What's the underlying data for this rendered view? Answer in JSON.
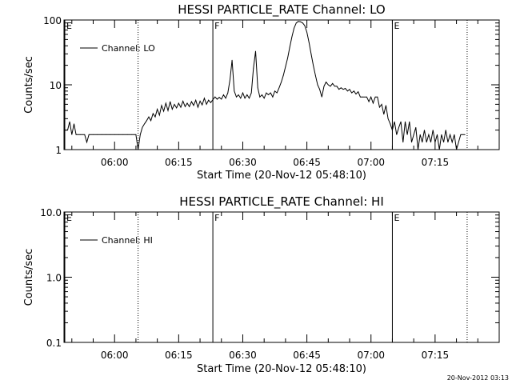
{
  "footer": {
    "timestamp": "20-Nov-2012 03:13"
  },
  "chart_data": [
    {
      "type": "line",
      "title": "HESSI PARTICLE_RATE Channel: LO",
      "xlabel": "Start Time (20-Nov-12 05:48:10)",
      "ylabel": "Counts/sec",
      "yscale": "log",
      "ylim": [
        1,
        100
      ],
      "y_ticks": [
        "1",
        "10",
        "100"
      ],
      "xlim": [
        "05:48:10",
        "07:30:00"
      ],
      "x_ticks": [
        "06:00",
        "06:15",
        "06:30",
        "06:45",
        "07:00",
        "07:15"
      ],
      "legend": {
        "entries": [
          "Channel: LO"
        ],
        "position": "upper-left"
      },
      "markers": [
        {
          "time": "05:48:10",
          "label": "E",
          "style": "solid"
        },
        {
          "time": "06:05:30",
          "label": "",
          "style": "dotted"
        },
        {
          "time": "06:23:00",
          "label": "F",
          "style": "solid"
        },
        {
          "time": "07:05:00",
          "label": "E",
          "style": "solid"
        },
        {
          "time": "07:22:30",
          "label": "",
          "style": "dotted"
        }
      ],
      "series": [
        {
          "name": "Channel: LO",
          "points": [
            [
              "05:48:10",
              2
            ],
            [
              "05:49:00",
              2
            ],
            [
              "05:49:30",
              2.7
            ],
            [
              "05:50:00",
              1.7
            ],
            [
              "05:50:30",
              2.5
            ],
            [
              "05:51:00",
              1.7
            ],
            [
              "05:52:00",
              1.7
            ],
            [
              "05:53:00",
              1.7
            ],
            [
              "05:53:30",
              1.3
            ],
            [
              "05:54:00",
              1.7
            ],
            [
              "05:55:00",
              1.7
            ],
            [
              "05:56:00",
              1.7
            ],
            [
              "05:57:00",
              1.7
            ],
            [
              "05:58:00",
              1.7
            ],
            [
              "05:59:00",
              1.7
            ],
            [
              "06:00:00",
              1.7
            ],
            [
              "06:01:00",
              1.7
            ],
            [
              "06:02:00",
              1.7
            ],
            [
              "06:03:00",
              1.7
            ],
            [
              "06:04:00",
              1.7
            ],
            [
              "06:05:00",
              1.7
            ],
            [
              "06:05:30",
              1
            ],
            [
              "06:06:00",
              1.7
            ],
            [
              "06:06:30",
              2.2
            ],
            [
              "06:07:00",
              2.5
            ],
            [
              "06:07:30",
              2.8
            ],
            [
              "06:08:00",
              3.2
            ],
            [
              "06:08:30",
              2.8
            ],
            [
              "06:09:00",
              3.6
            ],
            [
              "06:09:30",
              3.2
            ],
            [
              "06:10:00",
              4.2
            ],
            [
              "06:10:30",
              3.4
            ],
            [
              "06:11:00",
              4.8
            ],
            [
              "06:11:30",
              3.9
            ],
            [
              "06:12:00",
              5.2
            ],
            [
              "06:12:30",
              4.0
            ],
            [
              "06:13:00",
              5.5
            ],
            [
              "06:13:30",
              4.2
            ],
            [
              "06:14:00",
              5.0
            ],
            [
              "06:14:30",
              4.4
            ],
            [
              "06:15:00",
              5.2
            ],
            [
              "06:15:30",
              4.5
            ],
            [
              "06:16:00",
              5.6
            ],
            [
              "06:16:30",
              4.6
            ],
            [
              "06:17:00",
              5.2
            ],
            [
              "06:17:30",
              4.6
            ],
            [
              "06:18:00",
              5.5
            ],
            [
              "06:18:30",
              4.8
            ],
            [
              "06:19:00",
              5.8
            ],
            [
              "06:19:30",
              4.5
            ],
            [
              "06:20:00",
              5.6
            ],
            [
              "06:20:30",
              4.9
            ],
            [
              "06:21:00",
              6.2
            ],
            [
              "06:21:30",
              5.0
            ],
            [
              "06:22:00",
              5.8
            ],
            [
              "06:22:30",
              5.3
            ],
            [
              "06:23:00",
              5.9
            ],
            [
              "06:23:30",
              6.5
            ],
            [
              "06:24:00",
              6.0
            ],
            [
              "06:24:30",
              6.4
            ],
            [
              "06:25:00",
              6.0
            ],
            [
              "06:25:30",
              7.0
            ],
            [
              "06:26:00",
              6.2
            ],
            [
              "06:26:30",
              7.5
            ],
            [
              "06:27:00",
              12
            ],
            [
              "06:27:30",
              24
            ],
            [
              "06:28:00",
              8
            ],
            [
              "06:28:30",
              6.5
            ],
            [
              "06:29:00",
              7.0
            ],
            [
              "06:29:30",
              6.2
            ],
            [
              "06:30:00",
              7.5
            ],
            [
              "06:30:30",
              6.2
            ],
            [
              "06:31:00",
              7.0
            ],
            [
              "06:31:30",
              6.2
            ],
            [
              "06:32:00",
              7.5
            ],
            [
              "06:32:30",
              18
            ],
            [
              "06:33:00",
              33
            ],
            [
              "06:33:30",
              9
            ],
            [
              "06:34:00",
              6.5
            ],
            [
              "06:34:30",
              7.0
            ],
            [
              "06:35:00",
              6.2
            ],
            [
              "06:35:30",
              7.5
            ],
            [
              "06:36:00",
              7.0
            ],
            [
              "06:36:30",
              7.5
            ],
            [
              "06:37:00",
              6.5
            ],
            [
              "06:37:30",
              8
            ],
            [
              "06:38:00",
              7.5
            ],
            [
              "06:38:30",
              9
            ],
            [
              "06:39:00",
              11
            ],
            [
              "06:39:30",
              14
            ],
            [
              "06:40:00",
              19
            ],
            [
              "06:40:30",
              26
            ],
            [
              "06:41:00",
              38
            ],
            [
              "06:41:30",
              55
            ],
            [
              "06:42:00",
              75
            ],
            [
              "06:42:30",
              90
            ],
            [
              "06:43:00",
              95
            ],
            [
              "06:43:30",
              94
            ],
            [
              "06:44:00",
              90
            ],
            [
              "06:44:30",
              82
            ],
            [
              "06:45:00",
              65
            ],
            [
              "06:45:30",
              45
            ],
            [
              "06:46:00",
              30
            ],
            [
              "06:46:30",
              20
            ],
            [
              "06:47:00",
              14
            ],
            [
              "06:47:30",
              10
            ],
            [
              "06:48:00",
              8.5
            ],
            [
              "06:48:30",
              6.5
            ],
            [
              "06:49:00",
              9.5
            ],
            [
              "06:49:30",
              11
            ],
            [
              "06:50:00",
              10
            ],
            [
              "06:50:30",
              9.5
            ],
            [
              "06:51:00",
              10.5
            ],
            [
              "06:51:30",
              9.5
            ],
            [
              "06:52:00",
              9.5
            ],
            [
              "06:52:30",
              8.5
            ],
            [
              "06:53:00",
              9
            ],
            [
              "06:53:30",
              8.5
            ],
            [
              "06:54:00",
              8.8
            ],
            [
              "06:54:30",
              8
            ],
            [
              "06:55:00",
              8.5
            ],
            [
              "06:55:30",
              7.5
            ],
            [
              "06:56:00",
              8
            ],
            [
              "06:56:30",
              7.2
            ],
            [
              "06:57:00",
              7.8
            ],
            [
              "06:57:30",
              6.5
            ],
            [
              "06:58:00",
              6.5
            ],
            [
              "06:59:00",
              6.5
            ],
            [
              "06:59:30",
              5.5
            ],
            [
              "07:00:00",
              6.5
            ],
            [
              "07:00:30",
              5.2
            ],
            [
              "07:01:00",
              6.5
            ],
            [
              "07:01:30",
              6.5
            ],
            [
              "07:02:00",
              4.5
            ],
            [
              "07:02:30",
              5.0
            ],
            [
              "07:03:00",
              3.5
            ],
            [
              "07:03:30",
              4.8
            ],
            [
              "07:04:00",
              3.0
            ],
            [
              "07:04:30",
              2.5
            ],
            [
              "07:05:00",
              2.0
            ],
            [
              "07:05:30",
              2.7
            ],
            [
              "07:06:00",
              1.7
            ],
            [
              "07:06:30",
              2.2
            ],
            [
              "07:07:00",
              2.7
            ],
            [
              "07:07:30",
              1.3
            ],
            [
              "07:08:00",
              2.7
            ],
            [
              "07:08:30",
              1.7
            ],
            [
              "07:09:00",
              2.7
            ],
            [
              "07:09:30",
              1.3
            ],
            [
              "07:10:00",
              1.7
            ],
            [
              "07:10:30",
              2.2
            ],
            [
              "07:11:00",
              1.0
            ],
            [
              "07:11:30",
              1.7
            ],
            [
              "07:12:00",
              1.3
            ],
            [
              "07:12:30",
              2.0
            ],
            [
              "07:13:00",
              1.3
            ],
            [
              "07:13:30",
              1.7
            ],
            [
              "07:14:00",
              1.3
            ],
            [
              "07:14:30",
              2.0
            ],
            [
              "07:15:00",
              1.3
            ],
            [
              "07:15:30",
              1.7
            ],
            [
              "07:16:00",
              1.0
            ],
            [
              "07:16:30",
              1.7
            ],
            [
              "07:17:00",
              1.3
            ],
            [
              "07:17:30",
              2.0
            ],
            [
              "07:18:00",
              1.3
            ],
            [
              "07:18:30",
              1.7
            ],
            [
              "07:19:00",
              1.3
            ],
            [
              "07:19:30",
              1.7
            ],
            [
              "07:20:00",
              1.0
            ],
            [
              "07:21:00",
              1.7
            ],
            [
              "07:22:00",
              1.7
            ]
          ]
        }
      ]
    },
    {
      "type": "line",
      "title": "HESSI PARTICLE_RATE Channel: HI",
      "xlabel": "Start Time (20-Nov-12 05:48:10)",
      "ylabel": "Counts/sec",
      "yscale": "log",
      "ylim": [
        0.1,
        10
      ],
      "y_ticks": [
        "0.1",
        "1.0",
        "10.0"
      ],
      "xlim": [
        "05:48:10",
        "07:30:00"
      ],
      "x_ticks": [
        "06:00",
        "06:15",
        "06:30",
        "06:45",
        "07:00",
        "07:15"
      ],
      "legend": {
        "entries": [
          "Channel: HI"
        ],
        "position": "upper-left"
      },
      "markers": [
        {
          "time": "05:48:10",
          "label": "E",
          "style": "solid"
        },
        {
          "time": "06:05:30",
          "label": "",
          "style": "dotted"
        },
        {
          "time": "06:23:00",
          "label": "F",
          "style": "solid"
        },
        {
          "time": "07:05:00",
          "label": "E",
          "style": "solid"
        },
        {
          "time": "07:22:30",
          "label": "",
          "style": "dotted"
        }
      ],
      "series": [
        {
          "name": "Channel: HI",
          "points": []
        }
      ]
    }
  ]
}
